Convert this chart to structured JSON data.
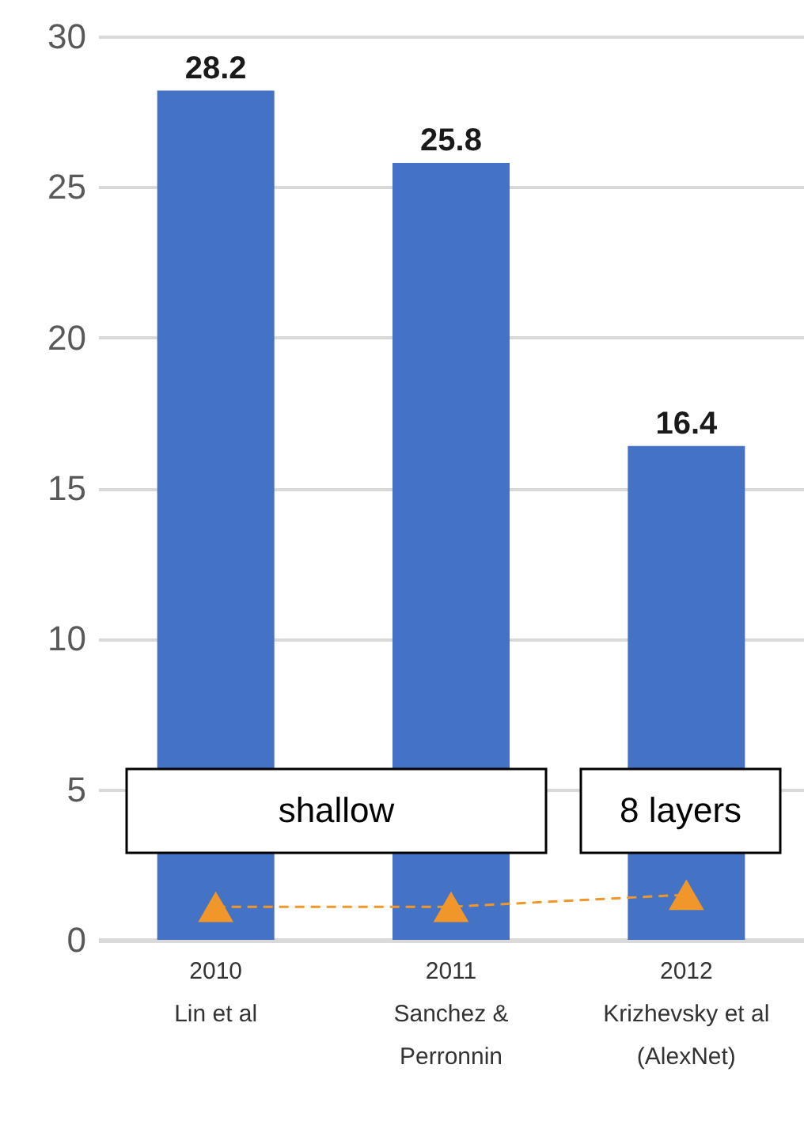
{
  "chart_data": {
    "type": "bar",
    "categories": [
      "2010\nLin et al",
      "2011\nSanchez &\nPerronnin",
      "2012\nKrizhevsky et al\n(AlexNet)"
    ],
    "series": [
      {
        "color": "#4472c4",
        "values": [
          28.2,
          25.8,
          16.4
        ],
        "value_labels": [
          "28.2",
          "25.8",
          "16.4"
        ]
      },
      {
        "type": "line",
        "color": "#f0962a",
        "values": [
          1.1,
          1.1,
          1.5
        ]
      }
    ],
    "ylim": [
      0,
      30
    ],
    "yticks": [
      0,
      5,
      10,
      15,
      20,
      25,
      30
    ],
    "grid": "y",
    "marker": "triangle",
    "line_style": "dashed",
    "annotations": [
      "shallow",
      "8 layers"
    ]
  }
}
